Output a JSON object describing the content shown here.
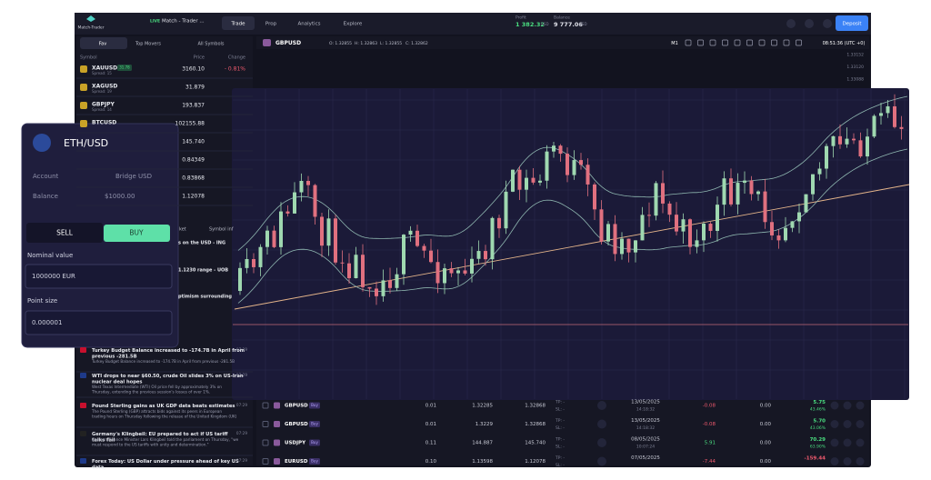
{
  "header": {
    "logo": "Match-Trader",
    "badge": "LIVE",
    "account": "Match - Trader ...",
    "tabs": [
      "Trade",
      "Prop",
      "Analytics",
      "Explore"
    ],
    "profit_label": "Profit",
    "profit": "1 382.32",
    "profit_currency": "USD",
    "balance_label": "Balance",
    "balance": "9 777.06",
    "balance_currency": "USD",
    "deposit": "Deposit"
  },
  "watchlist": {
    "tabs": [
      "Fav",
      "Top Movers",
      "All Symbols"
    ],
    "columns": [
      "Symbol",
      "Price",
      "Change"
    ],
    "rows": [
      {
        "symbol": "XAUUSD",
        "badge": "31.78",
        "spread": "Spread: 15",
        "price": "3160.10",
        "change": "- 0.81%"
      },
      {
        "symbol": "XAGUSD",
        "spread": "Spread: 19",
        "price": "31.879"
      },
      {
        "symbol": "GBPJPY",
        "spread": "Spread: 14",
        "price": "193.837"
      },
      {
        "symbol": "BTCUSD",
        "price": "102155.88"
      },
      {
        "price": "145.740"
      },
      {
        "price": "0.84349"
      },
      {
        "price": "0.83868"
      },
      {
        "price": "1.12078"
      }
    ]
  },
  "chart_toolbar": {
    "symbol": "GBPUSD",
    "open": "O: 1.32855",
    "high": "H: 1.32863",
    "low": "L: 1.32855",
    "close": "C: 1.32862",
    "timeframe": "M1",
    "time": "08:51:36 (UTC +0)",
    "price_labels": [
      "1.33152",
      "1.33120",
      "1.33088"
    ]
  },
  "news": {
    "tabs": [
      "ket",
      "Symbol inf"
    ],
    "fragments": [
      "s on the USD - ING",
      "1.1230 range - UOB",
      "ptimism surrounding"
    ],
    "items": [
      {
        "title": "Turkey Budget Balance increased to -174.7B in April from previous -281.5B",
        "body": "Turkey Budget Balance increased to -174.7B in April from previous -281.5B",
        "time": "07:29"
      },
      {
        "title": "WTI drops to near $60.50, crude Oil slides 3% on US-Iran nuclear deal hopes",
        "body": "West Texas Intermediate (WTI) Oil price fell by approximately 3% on Thursday, extending the previous session's losses of over 1%.",
        "time": "07:29"
      },
      {
        "title": "Pound Sterling gains as UK GDP data beats estimates",
        "body": "The Pound Sterling (GBP) attracts bids against its peers in European trading hours on Thursday following the release of the United Kingdom (UK) Gross Domestic Product.",
        "time": "07:29"
      },
      {
        "title": "Germany's Klingbeil: EU prepared to act if US tariff talks fail",
        "body": "German Finance Minister Lars Klingbeil told the parliament on Thursday, \"we must respond to the US tariffs with unity and determination.\"",
        "time": "07:29"
      },
      {
        "title": "Forex Today: US Dollar under pressure ahead of key US data,",
        "time": "07:29"
      }
    ]
  },
  "positions": [
    {
      "symbol": "GBPUSD",
      "side": "Buy",
      "volume": "0.01",
      "open": "1.32285",
      "current": "1.32868",
      "tp": "TP: -",
      "sl": "SL: -",
      "date": "13/05/2025",
      "time": "14:18:32",
      "profit": "-0.08",
      "swap": "0.00",
      "net": "5.75",
      "net_pct": "43.46%"
    },
    {
      "symbol": "GBPUSD",
      "side": "Buy",
      "volume": "0.01",
      "open": "1.3229",
      "current": "1.32868",
      "tp": "TP: -",
      "sl": "SL: -",
      "date": "13/05/2025",
      "time": "14:18:32",
      "profit": "-0.08",
      "swap": "0.00",
      "net": "5.70",
      "net_pct": "43.06%"
    },
    {
      "symbol": "USDJPY",
      "side": "Buy",
      "volume": "0.11",
      "open": "144.887",
      "current": "145.740",
      "tp": "TP: -",
      "sl": "SL: -",
      "date": "08/05/2025",
      "time": "10:07:24",
      "profit": "5.91",
      "swap": "0.00",
      "net": "70.29",
      "net_pct": "63.90%"
    },
    {
      "symbol": "EURUSD",
      "side": "Buy",
      "volume": "0.10",
      "open": "1.13598",
      "current": "1.12078",
      "tp": "TP: -",
      "sl": "SL: -",
      "date": "07/05/2025",
      "profit": "-7.44",
      "swap": "0.00",
      "net": "-159.44"
    }
  ],
  "order_card": {
    "symbol": "ETH/USD",
    "account_label": "Account",
    "account": "Bridge USD",
    "balance_label": "Balance",
    "balance": "$1000.00",
    "sell": "SELL",
    "buy": "BUY",
    "nominal_label": "Nominal value",
    "nominal": "1000000 EUR",
    "point_label": "Point size",
    "point": "0.000001"
  }
}
